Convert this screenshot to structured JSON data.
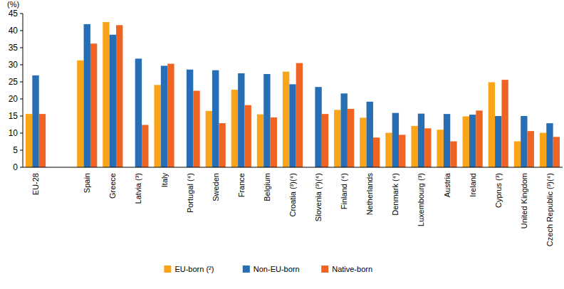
{
  "chart_data": {
    "type": "bar",
    "y_label": "(%)",
    "categories": [
      "EU-28",
      null,
      "Spain",
      "Greece",
      "Latvia (³)",
      "Italy",
      "Portugal (⁴)",
      "Sweden",
      "France",
      "Belgium",
      "Croatia (³)(⁴)",
      "Slovenia (³)(⁴)",
      "Finland (⁴)",
      "Netherlands",
      "Denmark (⁴)",
      "Luxembourg (³)",
      "Austria",
      "Ireland",
      "Cyprus (³)",
      "United Kingdom",
      "Czech Republic (³)(⁴)"
    ],
    "series": [
      {
        "name": "EU-born (²)",
        "color": "#faa519",
        "values": [
          15.6,
          null,
          31.3,
          42.5,
          null,
          24.1,
          null,
          16.5,
          22.7,
          15.5,
          28.0,
          null,
          16.8,
          14.5,
          10.1,
          12.1,
          11.0,
          14.9,
          24.9,
          7.6,
          10.1
        ]
      },
      {
        "name": "Non-EU-born",
        "color": "#286eb4",
        "values": [
          26.9,
          null,
          41.9,
          38.8,
          31.8,
          29.7,
          28.6,
          28.4,
          27.5,
          27.3,
          24.3,
          23.5,
          21.6,
          19.2,
          15.9,
          15.7,
          15.6,
          15.4,
          15.0,
          15.0,
          12.9
        ]
      },
      {
        "name": "Native-born",
        "color": "#f06423",
        "values": [
          15.6,
          null,
          36.2,
          41.6,
          12.4,
          30.3,
          22.4,
          12.9,
          18.2,
          14.6,
          30.5,
          15.6,
          17.1,
          8.7,
          9.5,
          11.4,
          7.6,
          16.6,
          25.6,
          10.6,
          8.9
        ]
      }
    ],
    "ylim": [
      0,
      45
    ],
    "yticks": [
      0,
      5,
      10,
      15,
      20,
      25,
      30,
      35,
      40,
      45
    ],
    "grid": false,
    "legend": "bottom"
  }
}
